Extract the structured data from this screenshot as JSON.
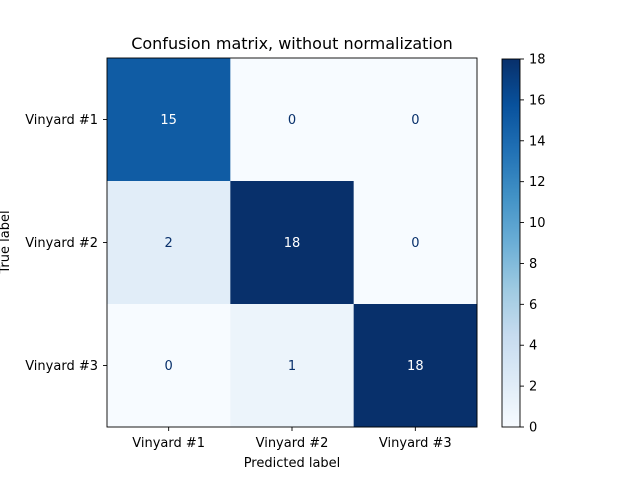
{
  "chart_data": {
    "type": "heatmap",
    "title": "Confusion matrix, without normalization",
    "xlabel": "Predicted label",
    "ylabel": "True label",
    "x_categories": [
      "Vinyard #1",
      "Vinyard #2",
      "Vinyard #3"
    ],
    "y_categories": [
      "Vinyard #1",
      "Vinyard #2",
      "Vinyard #3"
    ],
    "values": [
      [
        15,
        0,
        0
      ],
      [
        2,
        18,
        0
      ],
      [
        0,
        1,
        18
      ]
    ],
    "colormap": "Blues",
    "colorbar": {
      "range": [
        0,
        18
      ],
      "ticks": [
        "0",
        "2",
        "4",
        "6",
        "8",
        "10",
        "12",
        "14",
        "16",
        "18"
      ]
    }
  }
}
